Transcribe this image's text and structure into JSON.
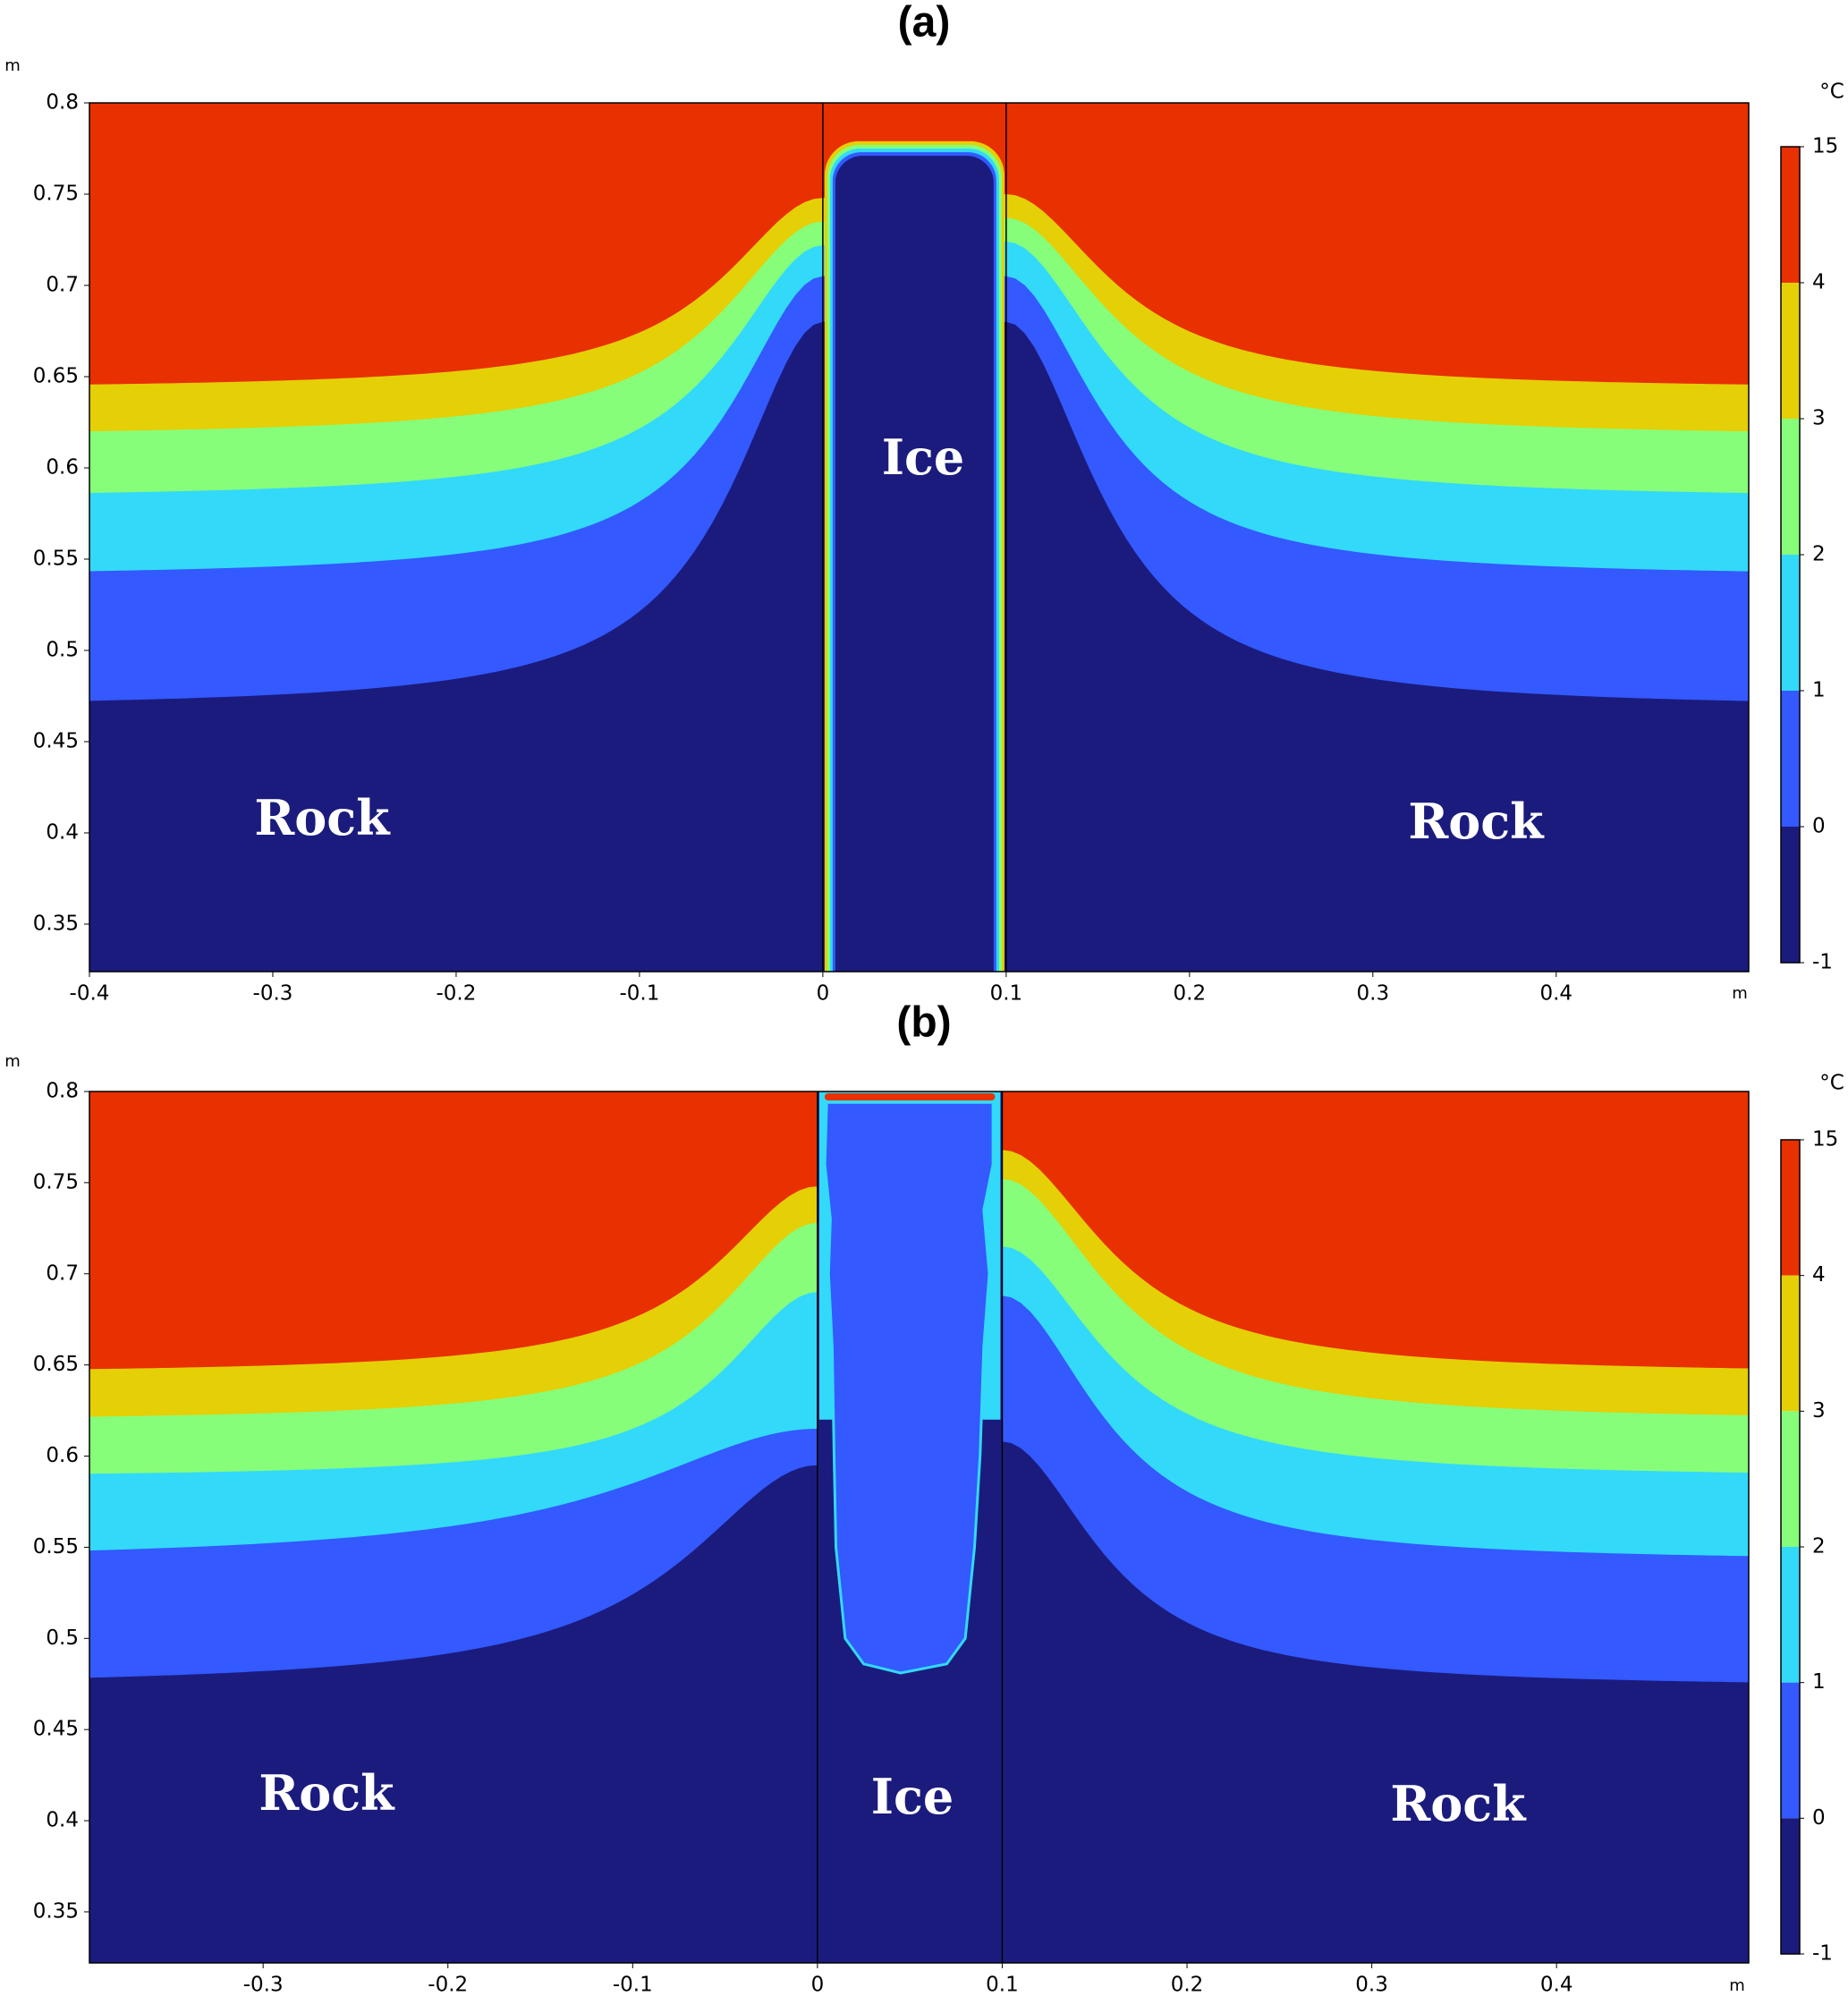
{
  "chart_data": [
    {
      "type": "contour",
      "title": "(a)",
      "x_unit": "m",
      "y_unit": "m",
      "colorbar_unit": "°C",
      "xlim": [
        -0.4,
        0.505
      ],
      "ylim": [
        0.324,
        0.8
      ],
      "xticks": [
        -0.4,
        -0.3,
        -0.2,
        -0.1,
        0,
        0.1,
        0.2,
        0.3,
        0.4
      ],
      "yticks": [
        0.35,
        0.4,
        0.45,
        0.5,
        0.55,
        0.6,
        0.65,
        0.7,
        0.75,
        0.8
      ],
      "colorbar_ticks": [
        15,
        4,
        3,
        2,
        1,
        0,
        -1
      ],
      "colors": [
        "#e83000",
        "#e5cf06",
        "#86fe7a",
        "#33d9f9",
        "#3359ff",
        "#1b1b7e"
      ],
      "divider_x": [
        0,
        0.1
      ],
      "annotations": [
        "Rock",
        "Ice",
        "Rock"
      ]
    },
    {
      "type": "contour",
      "title": "(b)",
      "x_unit": "m",
      "y_unit": "m",
      "colorbar_unit": "°C",
      "xlim": [
        -0.394,
        0.504
      ],
      "ylim": [
        0.322,
        0.8
      ],
      "xticks": [
        -0.3,
        -0.2,
        -0.1,
        0,
        0.1,
        0.2,
        0.3,
        0.4
      ],
      "yticks": [
        0.35,
        0.4,
        0.45,
        0.5,
        0.55,
        0.6,
        0.65,
        0.7,
        0.75,
        0.8
      ],
      "colorbar_ticks": [
        15,
        4,
        3,
        2,
        1,
        0,
        -1
      ],
      "colors": [
        "#e83000",
        "#e5cf06",
        "#86fe7a",
        "#33d9f9",
        "#3359ff",
        "#1b1b7e"
      ],
      "divider_x": [
        0,
        0.1
      ],
      "annotations": [
        "Rock",
        "Ice",
        "Rock"
      ]
    }
  ]
}
